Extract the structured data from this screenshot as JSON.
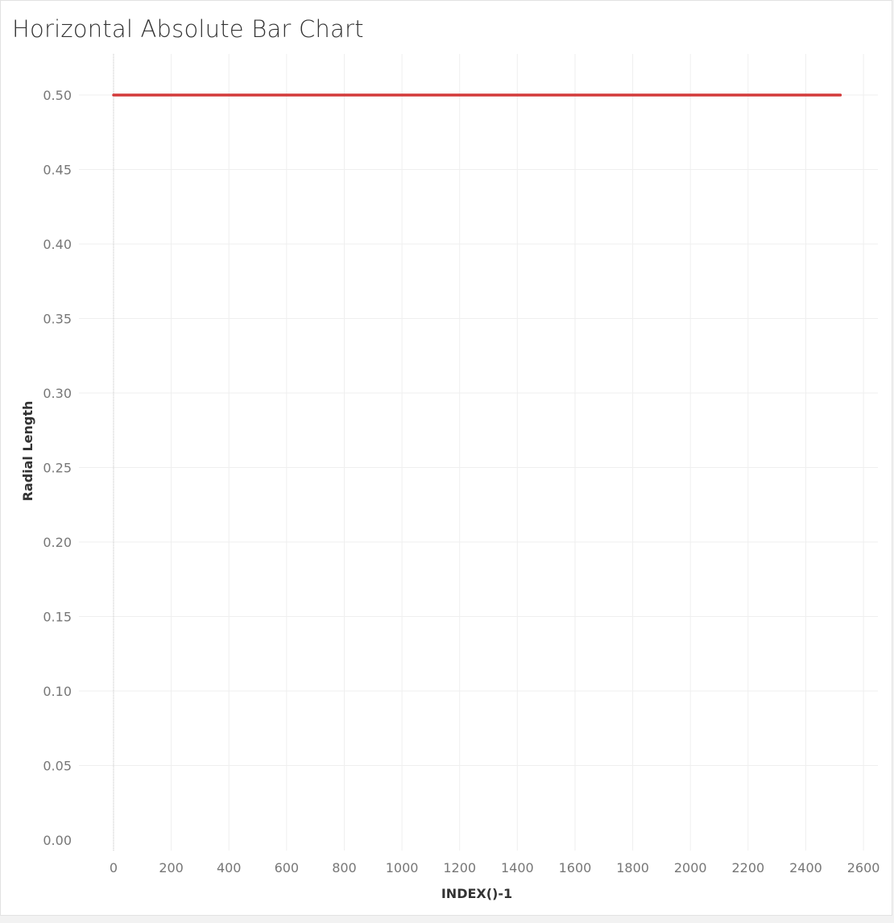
{
  "chart_title": "Horizontal Absolute Bar Chart",
  "colors": {
    "series": "#d33a3a",
    "grid": "#efefef",
    "zero_line": "#bdbdbd",
    "tick_text": "#777777",
    "axis_title_text": "#333333"
  },
  "chart_data": {
    "type": "line",
    "title": "Horizontal Absolute Bar Chart",
    "xlabel": "INDEX()-1",
    "ylabel": "Radial Length",
    "xlim": [
      -120,
      2650
    ],
    "ylim": [
      0,
      0.5
    ],
    "x_ticks": [
      0,
      200,
      400,
      600,
      800,
      1000,
      1200,
      1400,
      1600,
      1800,
      2000,
      2200,
      2400,
      2600
    ],
    "x_tick_labels": [
      "0",
      "200",
      "400",
      "600",
      "800",
      "1000",
      "1200",
      "1400",
      "1600",
      "1800",
      "2000",
      "2200",
      "2400",
      "2600"
    ],
    "y_ticks": [
      0,
      0.05,
      0.1,
      0.15,
      0.2,
      0.25,
      0.3,
      0.35,
      0.4,
      0.45,
      0.5
    ],
    "y_tick_labels": [
      "0.00",
      "0.05",
      "0.10",
      "0.15",
      "0.20",
      "0.25",
      "0.30",
      "0.35",
      "0.40",
      "0.45",
      "0.50"
    ],
    "grid": true,
    "series": [
      {
        "x": [
          0,
          50,
          100,
          200,
          300,
          400,
          430,
          500,
          600,
          700,
          800,
          900,
          910,
          1000,
          1100,
          1200,
          1300,
          1400,
          1500,
          1600,
          1700,
          1800,
          1840,
          1900,
          2000,
          2100,
          2200,
          2300,
          2400,
          2500,
          2520
        ],
        "values": [
          0.5,
          0.5,
          0.5,
          0.5,
          0.5,
          0.5,
          0.5,
          0.5,
          0.5,
          0.5,
          0.5,
          0.5,
          0.5,
          0.5,
          0.5,
          0.5,
          0.5,
          0.5,
          0.5,
          0.5,
          0.5,
          0.5,
          0.5,
          0.5,
          0.5,
          0.5,
          0.5,
          0.5,
          0.5,
          0.5,
          0.5
        ]
      }
    ]
  }
}
